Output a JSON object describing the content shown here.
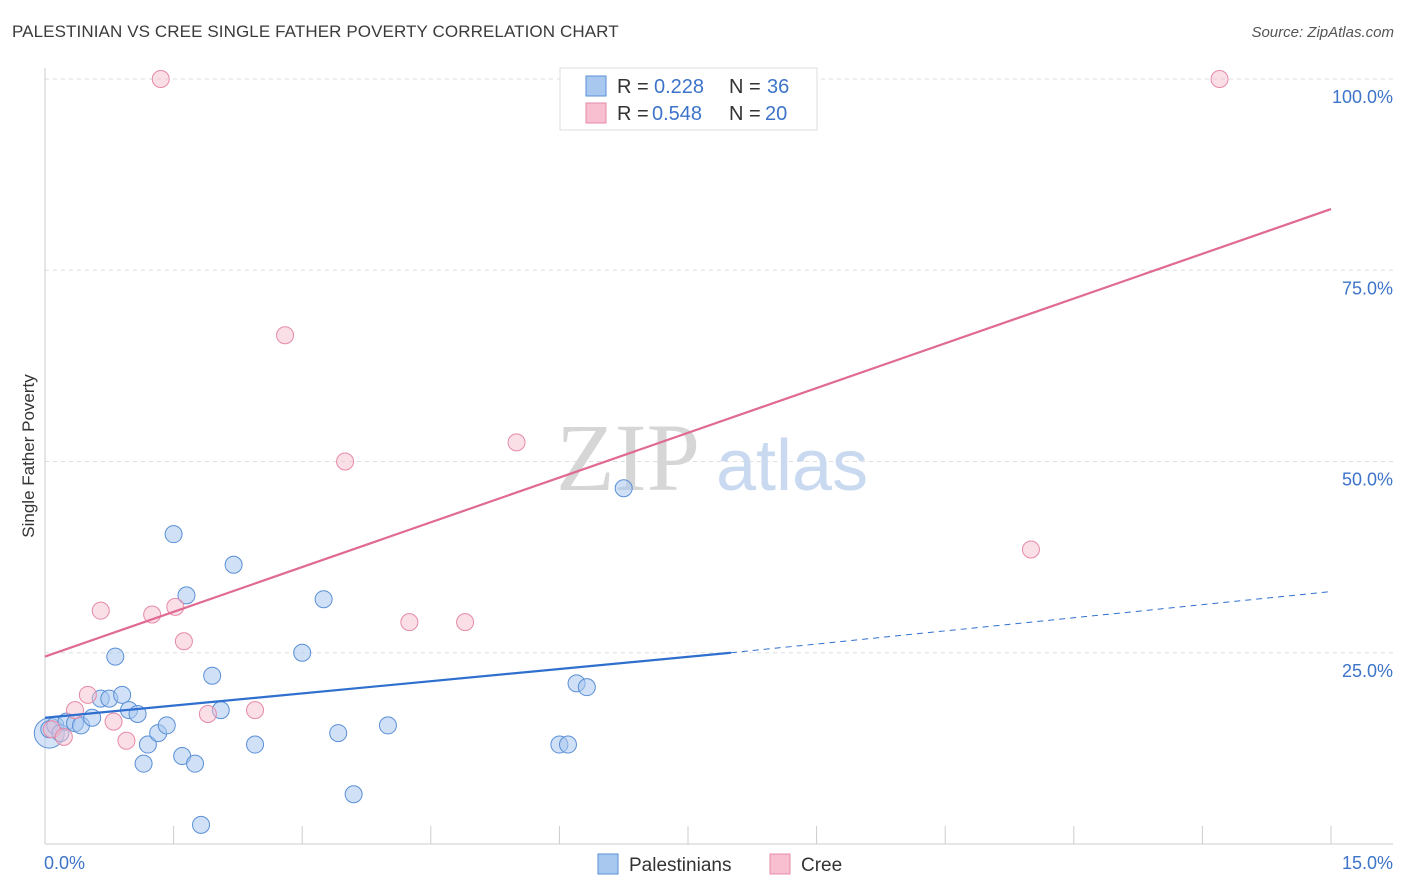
{
  "title": "PALESTINIAN VS CREE SINGLE FATHER POVERTY CORRELATION CHART",
  "source": "Source: ZipAtlas.com",
  "watermark": {
    "part1": "ZIP",
    "part2": "atlas"
  },
  "colors": {
    "blue_fill": "#a9c8f0",
    "blue_stroke": "#5a8fd6",
    "blue_line": "#2f6fce",
    "pink_fill": "#f7bfd0",
    "pink_stroke": "#e68aa8",
    "pink_line": "#e06a92",
    "grid": "#dddddd",
    "axis": "#cccccc",
    "tick_text": "#3d74c9"
  },
  "legend": {
    "rows": [
      {
        "r_label": "R =",
        "r_value": "0.228",
        "n_label": "N =",
        "n_value": "36",
        "series": "blue"
      },
      {
        "r_label": "R =",
        "r_value": "0.548",
        "n_label": "N =",
        "n_value": "20",
        "series": "pink"
      }
    ]
  },
  "chart_data": {
    "type": "scatter",
    "title": "PALESTINIAN VS CREE SINGLE FATHER POVERTY CORRELATION CHART",
    "xlabel": "",
    "ylabel": "Single Father Poverty",
    "xlim": [
      0,
      15
    ],
    "ylim": [
      0,
      100
    ],
    "x_tick_labels": [
      "0.0%",
      "15.0%"
    ],
    "y_ticks": [
      25,
      50,
      75,
      100
    ],
    "y_tick_labels": [
      "25.0%",
      "50.0%",
      "75.0%",
      "100.0%"
    ],
    "grid": true,
    "series": [
      {
        "name": "Palestinians",
        "color": "blue",
        "r": 0.228,
        "n": 36,
        "trend": {
          "x0": 0,
          "y0": 16.5,
          "x1": 8.0,
          "y1": 25.0,
          "dash_to_x": 15,
          "dash_to_y": 33.0
        },
        "points": [
          [
            0.05,
            15.0
          ],
          [
            0.12,
            15.5
          ],
          [
            0.18,
            14.5
          ],
          [
            0.25,
            16.0
          ],
          [
            0.35,
            15.8
          ],
          [
            0.42,
            15.5
          ],
          [
            0.55,
            16.5
          ],
          [
            0.65,
            19.0
          ],
          [
            0.75,
            19.0
          ],
          [
            0.82,
            24.5
          ],
          [
            0.9,
            19.5
          ],
          [
            0.98,
            17.5
          ],
          [
            1.08,
            17.0
          ],
          [
            1.15,
            10.5
          ],
          [
            1.2,
            13.0
          ],
          [
            1.32,
            14.5
          ],
          [
            1.42,
            15.5
          ],
          [
            1.5,
            40.5
          ],
          [
            1.6,
            11.5
          ],
          [
            1.65,
            32.5
          ],
          [
            1.75,
            10.5
          ],
          [
            1.82,
            2.5
          ],
          [
            1.95,
            22.0
          ],
          [
            2.05,
            17.5
          ],
          [
            2.2,
            36.5
          ],
          [
            2.45,
            13.0
          ],
          [
            3.0,
            25.0
          ],
          [
            3.25,
            32.0
          ],
          [
            3.42,
            14.5
          ],
          [
            3.6,
            6.5
          ],
          [
            4.0,
            15.5
          ],
          [
            6.0,
            13.0
          ],
          [
            6.1,
            13.0
          ],
          [
            6.2,
            21.0
          ],
          [
            6.32,
            20.5
          ],
          [
            6.75,
            46.5
          ]
        ]
      },
      {
        "name": "Cree",
        "color": "pink",
        "r": 0.548,
        "n": 20,
        "trend": {
          "x0": 0,
          "y0": 24.5,
          "x1": 15,
          "y1": 83.0
        },
        "points": [
          [
            0.08,
            15.0
          ],
          [
            0.22,
            14.0
          ],
          [
            0.35,
            17.5
          ],
          [
            0.5,
            19.5
          ],
          [
            0.65,
            30.5
          ],
          [
            0.8,
            16.0
          ],
          [
            0.95,
            13.5
          ],
          [
            1.25,
            30.0
          ],
          [
            1.35,
            100.0
          ],
          [
            1.52,
            31.0
          ],
          [
            1.62,
            26.5
          ],
          [
            1.9,
            17.0
          ],
          [
            2.45,
            17.5
          ],
          [
            2.8,
            66.5
          ],
          [
            3.5,
            50.0
          ],
          [
            4.25,
            29.0
          ],
          [
            4.9,
            29.0
          ],
          [
            5.5,
            52.5
          ],
          [
            11.5,
            38.5
          ],
          [
            13.7,
            100.0
          ]
        ]
      }
    ]
  }
}
